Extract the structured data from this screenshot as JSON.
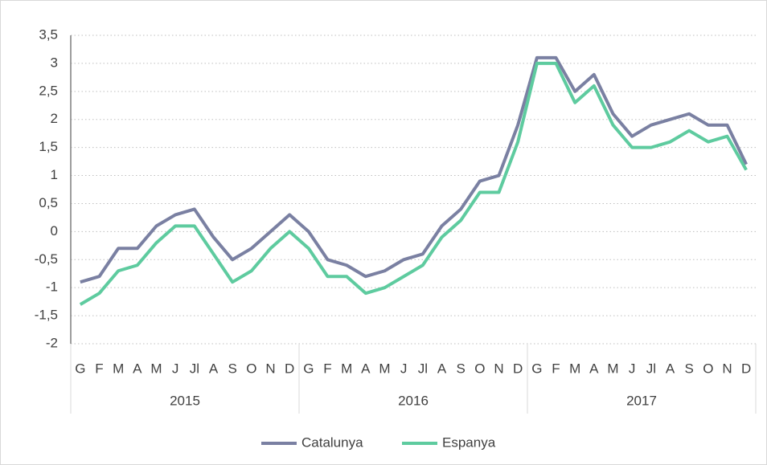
{
  "chart_data": {
    "type": "line",
    "categories": [
      "G",
      "F",
      "M",
      "A",
      "M",
      "J",
      "Jl",
      "A",
      "S",
      "O",
      "N",
      "D",
      "G",
      "F",
      "M",
      "A",
      "M",
      "J",
      "Jl",
      "A",
      "S",
      "O",
      "N",
      "D",
      "G",
      "F",
      "M",
      "A",
      "M",
      "J",
      "Jl",
      "A",
      "S",
      "O",
      "N",
      "D"
    ],
    "category_groups": [
      "2015",
      "2016",
      "2017"
    ],
    "series": [
      {
        "name": "Catalunya",
        "color": "#7a80a2",
        "values": [
          -0.9,
          -0.8,
          -0.3,
          -0.3,
          0.1,
          0.3,
          0.4,
          -0.1,
          -0.5,
          -0.3,
          0,
          0.3,
          0,
          -0.5,
          -0.6,
          -0.8,
          -0.7,
          -0.5,
          -0.4,
          0.1,
          0.4,
          0.9,
          1.0,
          1.9,
          3.1,
          3.1,
          2.5,
          2.8,
          2.1,
          1.7,
          1.9,
          2.0,
          2.1,
          1.9,
          1.9,
          1.2
        ]
      },
      {
        "name": "Espanya",
        "color": "#5ecb9f",
        "values": [
          -1.3,
          -1.1,
          -0.7,
          -0.6,
          -0.2,
          0.1,
          0.1,
          -0.4,
          -0.9,
          -0.7,
          -0.3,
          0,
          -0.3,
          -0.8,
          -0.8,
          -1.1,
          -1.0,
          -0.8,
          -0.6,
          -0.1,
          0.2,
          0.7,
          0.7,
          1.6,
          3.0,
          3.0,
          2.3,
          2.6,
          1.9,
          1.5,
          1.5,
          1.6,
          1.8,
          1.6,
          1.7,
          1.1
        ]
      }
    ],
    "ylim": [
      -2,
      3.5
    ],
    "yticks": [
      -2,
      {
        "value": -1.5,
        "label": "-1,5"
      },
      -1,
      {
        "value": -0.5,
        "label": "-0,5"
      },
      0,
      {
        "value": 0.5,
        "label": "0,5"
      },
      1,
      {
        "value": 1.5,
        "label": "1,5"
      },
      2,
      {
        "value": 2.5,
        "label": "2,5"
      },
      3,
      {
        "value": 3.5,
        "label": "3,5"
      }
    ],
    "grid": true,
    "legend": "bottom"
  }
}
